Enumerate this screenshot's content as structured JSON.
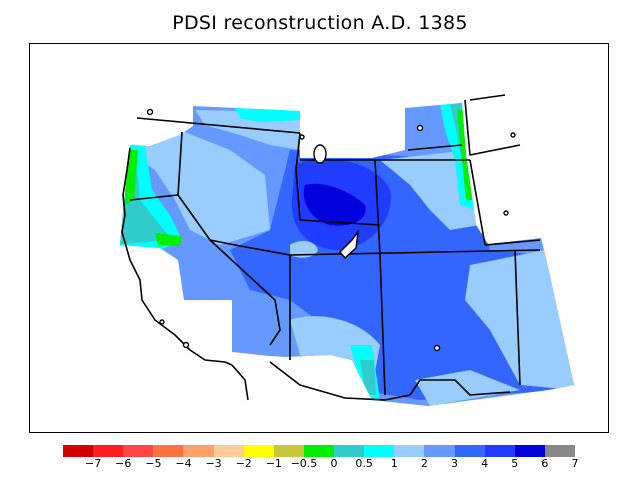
{
  "title": "PDSI reconstruction A.D. 1385",
  "legend": {
    "colors": [
      "#d20000",
      "#ff1e1e",
      "#ff4646",
      "#ff7340",
      "#ffa068",
      "#ffcc99",
      "#ffff00",
      "#c8c83c",
      "#00ee00",
      "#33cccc",
      "#00ffff",
      "#99ccff",
      "#6699ff",
      "#3366ff",
      "#1f3cff",
      "#0000dd",
      "#888888"
    ],
    "labels": [
      "−7",
      "−6",
      "−5",
      "−4",
      "−3",
      "−2",
      "−1",
      "−0.5",
      "0",
      "0.5",
      "1",
      "2",
      "3",
      "4",
      "5",
      "6",
      "7"
    ]
  }
}
